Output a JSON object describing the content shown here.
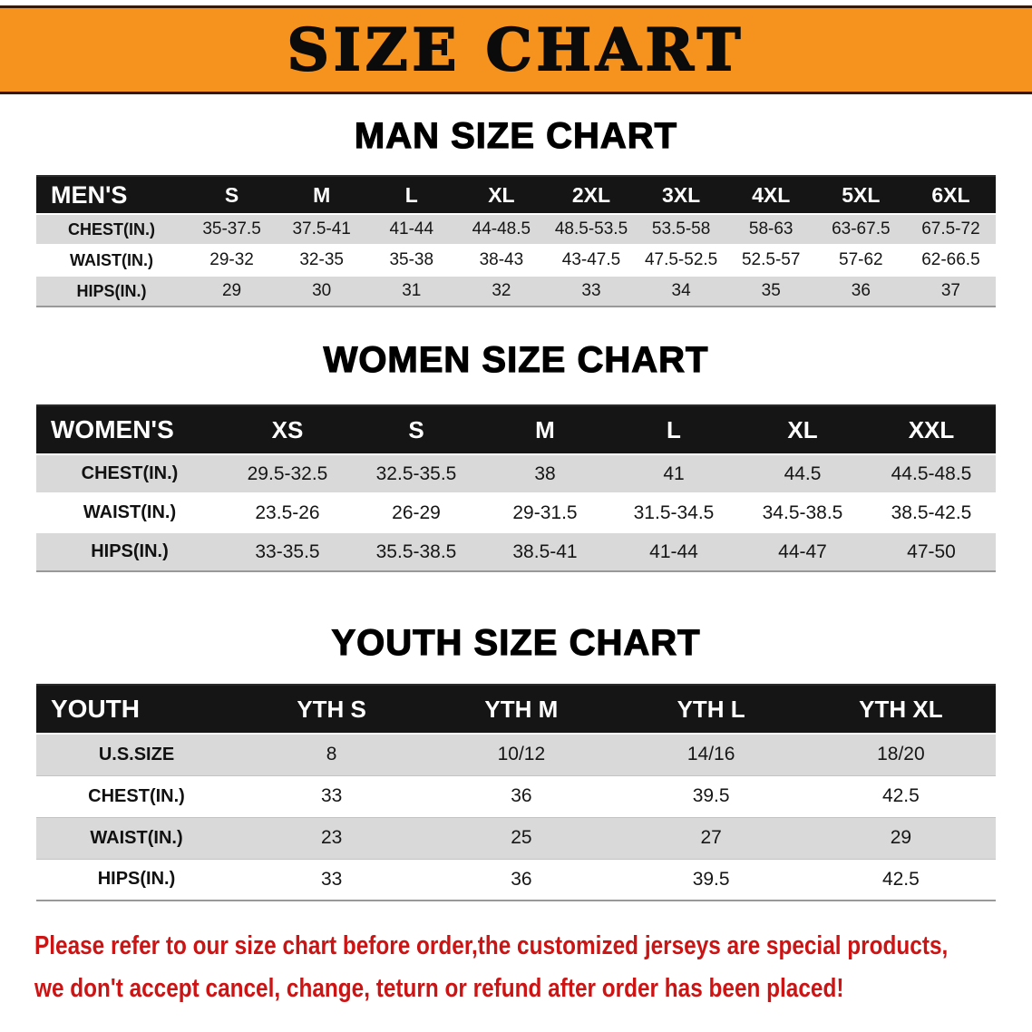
{
  "banner": {
    "title": "SIZE CHART"
  },
  "colors": {
    "banner_bg": "#f6921e",
    "table_header_bg": "#151515",
    "row_gray": "#d9d9d9",
    "disclaimer_red": "#cc1414"
  },
  "men": {
    "heading": "MAN SIZE CHART",
    "table": {
      "header": [
        "MEN'S",
        "S",
        "M",
        "L",
        "XL",
        "2XL",
        "3XL",
        "4XL",
        "5XL",
        "6XL"
      ],
      "rows": [
        [
          "CHEST(IN.)",
          "35-37.5",
          "37.5-41",
          "41-44",
          "44-48.5",
          "48.5-53.5",
          "53.5-58",
          "58-63",
          "63-67.5",
          "67.5-72"
        ],
        [
          "WAIST(IN.)",
          "29-32",
          "32-35",
          "35-38",
          "38-43",
          "43-47.5",
          "47.5-52.5",
          "52.5-57",
          "57-62",
          "62-66.5"
        ],
        [
          "HIPS(IN.)",
          "29",
          "30",
          "31",
          "32",
          "33",
          "34",
          "35",
          "36",
          "37"
        ]
      ]
    }
  },
  "women": {
    "heading": "WOMEN SIZE CHART",
    "table": {
      "header": [
        "WOMEN'S",
        "XS",
        "S",
        "M",
        "L",
        "XL",
        "XXL"
      ],
      "rows": [
        [
          "CHEST(IN.)",
          "29.5-32.5",
          "32.5-35.5",
          "38",
          "41",
          "44.5",
          "44.5-48.5"
        ],
        [
          "WAIST(IN.)",
          "23.5-26",
          "26-29",
          "29-31.5",
          "31.5-34.5",
          "34.5-38.5",
          "38.5-42.5"
        ],
        [
          "HIPS(IN.)",
          "33-35.5",
          "35.5-38.5",
          "38.5-41",
          "41-44",
          "44-47",
          "47-50"
        ]
      ]
    }
  },
  "youth": {
    "heading": "YOUTH SIZE CHART",
    "table": {
      "header": [
        "YOUTH",
        "YTH S",
        "YTH M",
        "YTH L",
        "YTH XL"
      ],
      "rows": [
        [
          "U.S.SIZE",
          "8",
          "10/12",
          "14/16",
          "18/20"
        ],
        [
          "CHEST(IN.)",
          "33",
          "36",
          "39.5",
          "42.5"
        ],
        [
          "WAIST(IN.)",
          "23",
          "25",
          "27",
          "29"
        ],
        [
          "HIPS(IN.)",
          "33",
          "36",
          "39.5",
          "42.5"
        ]
      ]
    }
  },
  "disclaimer": {
    "line1": "Please refer to our size chart before order,the customized jerseys are special products,",
    "line2": "we don't accept cancel, change, teturn or refund after order has been placed!"
  }
}
